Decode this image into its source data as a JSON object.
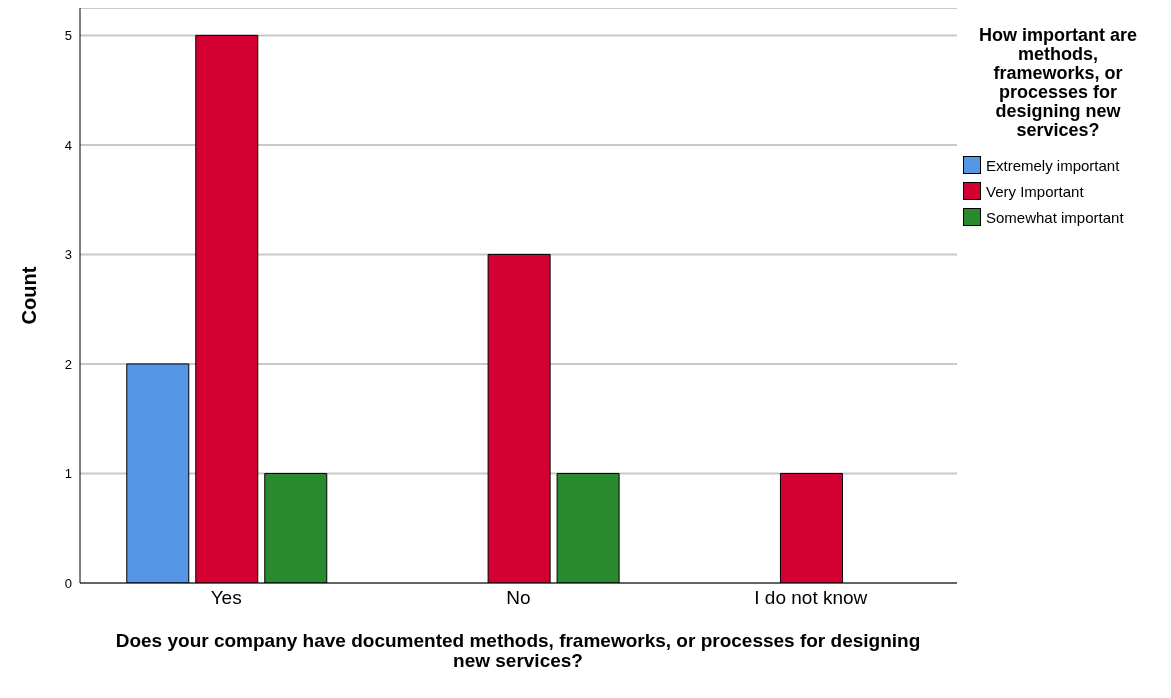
{
  "chart_data": {
    "type": "bar",
    "xlabel": "Does your company have documented methods, frameworks, or processes for designing new services?",
    "ylabel": "Count",
    "legend_title": "How important are methods, frameworks, or processes for designing new services?",
    "categories": [
      "Yes",
      "No",
      "I do not know"
    ],
    "series": [
      {
        "name": "Extremely important",
        "color": "#5596e6",
        "values": [
          2,
          null,
          null
        ]
      },
      {
        "name": "Very Important",
        "color": "#d50032",
        "values": [
          5,
          3,
          1
        ]
      },
      {
        "name": "Somewhat important",
        "color": "#2a8a2e",
        "values": [
          1,
          1,
          null
        ]
      }
    ],
    "ylim": [
      0,
      5.25
    ],
    "yticks": [
      0,
      1,
      2,
      3,
      4,
      5
    ],
    "grid": "y",
    "legend": "top right"
  }
}
